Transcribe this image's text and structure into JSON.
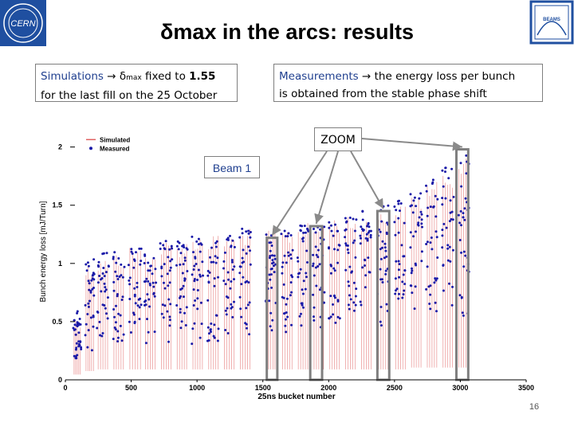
{
  "slide": {
    "title_symbol": "δ",
    "title_text": "max in the arcs: results",
    "page_number": "16"
  },
  "logos": [
    {
      "name": "CERN",
      "color": "#1f4fa0"
    },
    {
      "name": "BEAMS",
      "color": "#1f4fa0"
    }
  ],
  "left_box": {
    "word": "Simulations",
    "arrow": "→",
    "symbol": "δ",
    "symbol_sub": "max",
    "rest": " fixed to ",
    "value": "1.55",
    "line2": "for the last fill on the 25 October"
  },
  "right_box": {
    "word": "Measurements",
    "arrow": "→",
    "line1_rest": " the energy loss per bunch",
    "line2": "is obtained from the stable phase shift"
  },
  "zoom_label": "ZOOM",
  "beam_label": "Beam 1",
  "chart_data": {
    "type": "scatter",
    "xlabel": "25ns bucket number",
    "ylabel": "Bunch energy loss [mJ/Turn]",
    "xlim": [
      0,
      3500
    ],
    "ylim": [
      0,
      2.1
    ],
    "xticks": [
      0,
      500,
      1000,
      1500,
      2000,
      2500,
      3000,
      3500
    ],
    "yticks": [
      0,
      0.5,
      1,
      1.5,
      2
    ],
    "legend": [
      "Simulated",
      "Measured"
    ],
    "legend_position": "top-left",
    "series": [
      {
        "name": "Simulated",
        "color": "#e06060",
        "style": "vertical lines",
        "trains": [
          {
            "x": [
              60,
              120
            ],
            "y": [
              0.15,
              0.55
            ]
          },
          {
            "x": [
              150,
              220
            ],
            "y": [
              0.25,
              1.0
            ]
          },
          {
            "x": [
              240,
              330
            ],
            "y": [
              0.3,
              1.05
            ]
          },
          {
            "x": [
              360,
              450
            ],
            "y": [
              0.3,
              1.1
            ]
          },
          {
            "x": [
              480,
              580
            ],
            "y": [
              0.3,
              1.15
            ]
          },
          {
            "x": [
              600,
              690
            ],
            "y": [
              0.3,
              1.1
            ]
          },
          {
            "x": [
              720,
              810
            ],
            "y": [
              0.3,
              1.2
            ]
          },
          {
            "x": [
              840,
              930
            ],
            "y": [
              0.3,
              1.2
            ]
          },
          {
            "x": [
              960,
              1050
            ],
            "y": [
              0.3,
              1.25
            ]
          },
          {
            "x": [
              1080,
              1170
            ],
            "y": [
              0.3,
              1.25
            ]
          },
          {
            "x": [
              1200,
              1290
            ],
            "y": [
              0.3,
              1.25
            ]
          },
          {
            "x": [
              1320,
              1410
            ],
            "y": [
              0.3,
              1.3
            ]
          },
          {
            "x": [
              1520,
              1600
            ],
            "y": [
              0.3,
              1.3
            ]
          },
          {
            "x": [
              1640,
              1730
            ],
            "y": [
              0.3,
              1.3
            ]
          },
          {
            "x": [
              1760,
              1850
            ],
            "y": [
              0.3,
              1.35
            ]
          },
          {
            "x": [
              1880,
              1970
            ],
            "y": [
              0.3,
              1.35
            ]
          },
          {
            "x": [
              2000,
              2090
            ],
            "y": [
              0.3,
              1.4
            ]
          },
          {
            "x": [
              2120,
              2210
            ],
            "y": [
              0.3,
              1.4
            ]
          },
          {
            "x": [
              2240,
              2330
            ],
            "y": [
              0.3,
              1.4
            ]
          },
          {
            "x": [
              2370,
              2460
            ],
            "y": [
              0.3,
              1.45
            ]
          },
          {
            "x": [
              2500,
              2590
            ],
            "y": [
              0.3,
              1.5
            ]
          },
          {
            "x": [
              2620,
              2710
            ],
            "y": [
              0.35,
              1.6
            ]
          },
          {
            "x": [
              2740,
              2830
            ],
            "y": [
              0.35,
              1.7
            ]
          },
          {
            "x": [
              2860,
              2950
            ],
            "y": [
              0.35,
              1.8
            ]
          },
          {
            "x": [
              2980,
              3070
            ],
            "y": [
              0.35,
              1.9
            ]
          }
        ]
      },
      {
        "name": "Measured",
        "color": "#1a1aa8",
        "style": "dots",
        "trains": [
          {
            "x": [
              60,
              120
            ],
            "y": [
              0.1,
              0.6
            ]
          },
          {
            "x": [
              150,
              220
            ],
            "y": [
              0.2,
              1.05
            ]
          },
          {
            "x": [
              240,
              330
            ],
            "y": [
              0.3,
              1.1
            ]
          },
          {
            "x": [
              360,
              450
            ],
            "y": [
              0.3,
              1.1
            ]
          },
          {
            "x": [
              480,
              580
            ],
            "y": [
              0.3,
              1.15
            ]
          },
          {
            "x": [
              600,
              690
            ],
            "y": [
              0.3,
              1.1
            ]
          },
          {
            "x": [
              720,
              810
            ],
            "y": [
              0.3,
              1.2
            ]
          },
          {
            "x": [
              840,
              930
            ],
            "y": [
              0.3,
              1.2
            ]
          },
          {
            "x": [
              960,
              1050
            ],
            "y": [
              0.3,
              1.25
            ]
          },
          {
            "x": [
              1080,
              1170
            ],
            "y": [
              0.3,
              1.25
            ]
          },
          {
            "x": [
              1200,
              1290
            ],
            "y": [
              0.35,
              1.25
            ]
          },
          {
            "x": [
              1320,
              1410
            ],
            "y": [
              0.35,
              1.3
            ]
          },
          {
            "x": [
              1520,
              1600
            ],
            "y": [
              0.4,
              1.3
            ]
          },
          {
            "x": [
              1640,
              1730
            ],
            "y": [
              0.4,
              1.3
            ]
          },
          {
            "x": [
              1760,
              1850
            ],
            "y": [
              0.4,
              1.35
            ]
          },
          {
            "x": [
              1880,
              1970
            ],
            "y": [
              0.4,
              1.35
            ]
          },
          {
            "x": [
              2000,
              2090
            ],
            "y": [
              0.45,
              1.4
            ]
          },
          {
            "x": [
              2120,
              2210
            ],
            "y": [
              0.45,
              1.4
            ]
          },
          {
            "x": [
              2240,
              2330
            ],
            "y": [
              0.45,
              1.45
            ]
          },
          {
            "x": [
              2370,
              2460
            ],
            "y": [
              0.45,
              1.5
            ]
          },
          {
            "x": [
              2500,
              2590
            ],
            "y": [
              0.5,
              1.55
            ]
          },
          {
            "x": [
              2620,
              2710
            ],
            "y": [
              0.5,
              1.65
            ]
          },
          {
            "x": [
              2740,
              2830
            ],
            "y": [
              0.5,
              1.75
            ]
          },
          {
            "x": [
              2860,
              2950
            ],
            "y": [
              0.5,
              1.85
            ]
          },
          {
            "x": [
              2980,
              3070
            ],
            "y": [
              0.5,
              1.95
            ]
          }
        ]
      }
    ],
    "zoom_boxes": [
      {
        "x": [
          1530,
          1610
        ],
        "y": [
          0,
          1.22
        ]
      },
      {
        "x": [
          1860,
          1950
        ],
        "y": [
          0,
          1.32
        ]
      },
      {
        "x": [
          2370,
          2460
        ],
        "y": [
          0,
          1.45
        ]
      },
      {
        "x": [
          2970,
          3060
        ],
        "y": [
          0,
          1.98
        ]
      }
    ]
  }
}
